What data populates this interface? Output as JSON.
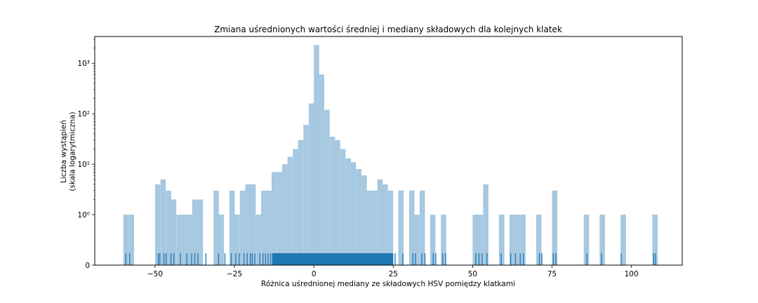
{
  "chart_data": {
    "type": "bar",
    "title": "Zmiana uśrednionych wartości średniej i mediany składowych dla kolejnych klatek",
    "xlabel": "Różnica uśrednionej mediany ze składowych HSV pomiędzy klatkami",
    "ylabel": "Liczba wystąpień\n(skala logarytmiczna)",
    "yscale": "symlog",
    "xlim": [
      -69,
      116
    ],
    "ylim": [
      0,
      3400
    ],
    "xticks": [
      -50,
      -25,
      0,
      25,
      50,
      75,
      100
    ],
    "xtick_labels": [
      "−50",
      "−25",
      "0",
      "25",
      "50",
      "75",
      "100"
    ],
    "yticks": [
      0,
      1,
      10,
      100,
      1000
    ],
    "ytick_labels": [
      "0",
      "10⁰",
      "10¹",
      "10²",
      "10³"
    ],
    "bar_color": "#a6c8e0",
    "rug_color": "#1f77b4",
    "bin_width": 1.68,
    "bins": [
      {
        "x0": -60.0,
        "count": 1
      },
      {
        "x0": -58.3,
        "count": 1
      },
      {
        "x0": -50.0,
        "count": 4
      },
      {
        "x0": -48.3,
        "count": 5
      },
      {
        "x0": -46.6,
        "count": 3
      },
      {
        "x0": -45.0,
        "count": 2
      },
      {
        "x0": -43.3,
        "count": 1
      },
      {
        "x0": -41.6,
        "count": 1
      },
      {
        "x0": -40.0,
        "count": 1
      },
      {
        "x0": -38.3,
        "count": 2
      },
      {
        "x0": -36.6,
        "count": 2
      },
      {
        "x0": -31.6,
        "count": 3
      },
      {
        "x0": -30.0,
        "count": 1
      },
      {
        "x0": -26.6,
        "count": 3
      },
      {
        "x0": -25.0,
        "count": 1
      },
      {
        "x0": -23.3,
        "count": 3
      },
      {
        "x0": -21.6,
        "count": 4
      },
      {
        "x0": -20.0,
        "count": 4
      },
      {
        "x0": -18.3,
        "count": 1
      },
      {
        "x0": -16.6,
        "count": 3
      },
      {
        "x0": -15.0,
        "count": 3
      },
      {
        "x0": -13.3,
        "count": 7
      },
      {
        "x0": -11.6,
        "count": 7
      },
      {
        "x0": -10.0,
        "count": 10
      },
      {
        "x0": -8.3,
        "count": 14
      },
      {
        "x0": -6.6,
        "count": 20
      },
      {
        "x0": -5.0,
        "count": 30
      },
      {
        "x0": -3.3,
        "count": 60
      },
      {
        "x0": -1.6,
        "count": 160
      },
      {
        "x0": 0.0,
        "count": 2300
      },
      {
        "x0": 1.6,
        "count": 600
      },
      {
        "x0": 3.3,
        "count": 120
      },
      {
        "x0": 5.0,
        "count": 35
      },
      {
        "x0": 6.6,
        "count": 30
      },
      {
        "x0": 8.3,
        "count": 20
      },
      {
        "x0": 10.0,
        "count": 13
      },
      {
        "x0": 11.6,
        "count": 11
      },
      {
        "x0": 13.3,
        "count": 8
      },
      {
        "x0": 15.0,
        "count": 6
      },
      {
        "x0": 16.6,
        "count": 3
      },
      {
        "x0": 18.3,
        "count": 3
      },
      {
        "x0": 20.0,
        "count": 5
      },
      {
        "x0": 21.6,
        "count": 4
      },
      {
        "x0": 23.3,
        "count": 3
      },
      {
        "x0": 26.6,
        "count": 3
      },
      {
        "x0": 30.0,
        "count": 3
      },
      {
        "x0": 31.6,
        "count": 1
      },
      {
        "x0": 33.3,
        "count": 3
      },
      {
        "x0": 36.6,
        "count": 1
      },
      {
        "x0": 40.0,
        "count": 1
      },
      {
        "x0": 50.0,
        "count": 1
      },
      {
        "x0": 51.6,
        "count": 1
      },
      {
        "x0": 53.3,
        "count": 4
      },
      {
        "x0": 58.3,
        "count": 1
      },
      {
        "x0": 61.6,
        "count": 1
      },
      {
        "x0": 63.3,
        "count": 1
      },
      {
        "x0": 65.0,
        "count": 1
      },
      {
        "x0": 70.0,
        "count": 1
      },
      {
        "x0": 75.0,
        "count": 3
      },
      {
        "x0": 85.0,
        "count": 1
      },
      {
        "x0": 90.0,
        "count": 1
      },
      {
        "x0": 96.6,
        "count": 1
      },
      {
        "x0": 106.6,
        "count": 1
      }
    ],
    "rug_dense_range": [
      -13,
      25
    ],
    "rug_points": [
      -59.2,
      -58.0,
      -49.0,
      -48.5,
      -47.2,
      -46.5,
      -45.0,
      -44.1,
      -42.0,
      -40.0,
      -38.5,
      -37.5,
      -36.5,
      -34.0,
      -30.0,
      -28.0,
      -26.0,
      -24.6,
      -23.5,
      -22.0,
      -21.0,
      -20.0,
      -19.4,
      -18.6,
      -17.0,
      -16.0,
      -15.2,
      -14.4,
      -13.6,
      -13.0,
      25.6,
      28.0,
      31.2,
      32.0,
      34.0,
      35.0,
      37.6,
      38.4,
      40.6,
      41.5,
      51.0,
      52.0,
      53.0,
      54.5,
      59.0,
      62.0,
      63.5,
      65.0,
      66.0,
      71.0,
      71.8,
      75.4,
      76.2,
      86.0,
      90.6,
      96.8,
      107.0,
      107.6
    ]
  }
}
